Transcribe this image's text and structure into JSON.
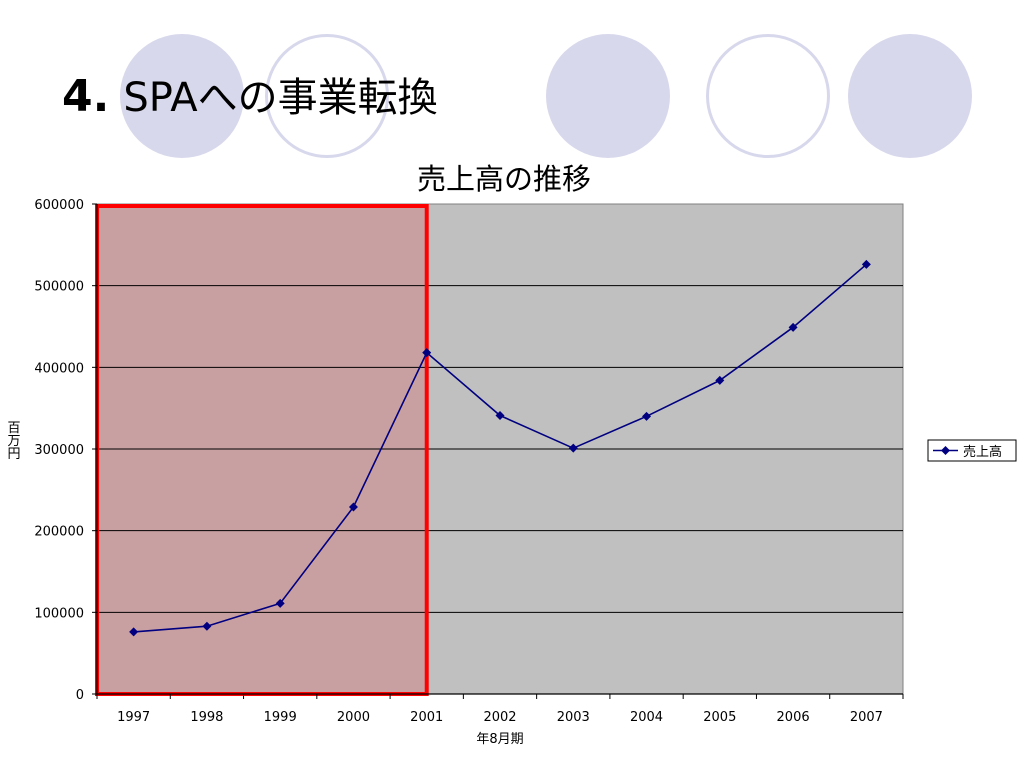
{
  "slide": {
    "number": "4.",
    "title": "SPAへの事業転換"
  },
  "colors": {
    "plot_bg": "#c0c0c0",
    "highlight_fill": "#c9a0a2",
    "highlight_border": "#ff0000",
    "series_line": "#000080",
    "gridline": "#000000",
    "decor_circle": "#d8d8ec"
  },
  "chart_data": {
    "type": "line",
    "title": "売上高の推移",
    "xlabel": "年8月期",
    "ylabel": "百万円",
    "categories": [
      "1997",
      "1998",
      "1999",
      "2000",
      "2001",
      "2002",
      "2003",
      "2004",
      "2005",
      "2006",
      "2007"
    ],
    "series": [
      {
        "name": "売上高",
        "marker": "diamond",
        "values": [
          76000,
          83000,
          111000,
          229000,
          418000,
          341000,
          301000,
          340000,
          384000,
          449000,
          526000
        ]
      }
    ],
    "ylim": [
      0,
      600000
    ],
    "yticks": [
      "0",
      "100000",
      "200000",
      "300000",
      "400000",
      "500000",
      "600000"
    ],
    "grid": true,
    "legend_position": "right",
    "highlight_range": [
      "1997",
      "2001"
    ]
  }
}
